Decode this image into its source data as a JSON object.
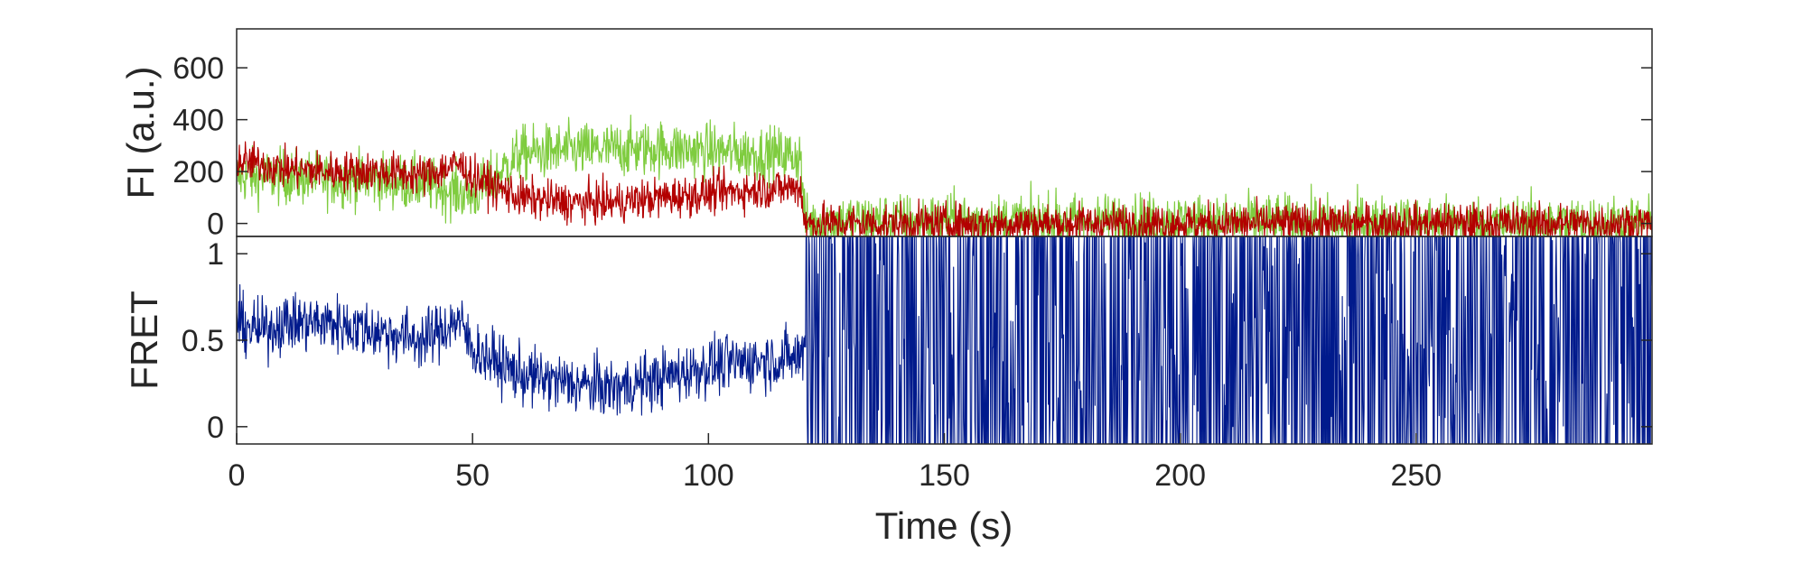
{
  "chart_data": [
    {
      "type": "line",
      "panel": "top",
      "ylabel": "FI (a.u.)",
      "xlim": [
        0,
        300
      ],
      "ylim": [
        -50,
        750
      ],
      "yticks": [
        0,
        200,
        400,
        600
      ],
      "ytick_labels": [
        "0",
        "200",
        "400",
        "600"
      ],
      "grid": false,
      "series": [
        {
          "color": "#7fcc3f",
          "noise": 75,
          "x": [
            0,
            10,
            20,
            30,
            40,
            50,
            55,
            60,
            70,
            80,
            90,
            100,
            110,
            119.5,
            120.5,
            130,
            150,
            200,
            250,
            300
          ],
          "y": [
            180,
            180,
            170,
            170,
            150,
            110,
            180,
            270,
            280,
            285,
            290,
            280,
            270,
            260,
            0,
            10,
            10,
            10,
            0,
            0
          ]
        },
        {
          "color": "#b30000",
          "noise": 55,
          "x": [
            0,
            5,
            10,
            20,
            30,
            40,
            47,
            50,
            60,
            70,
            80,
            90,
            100,
            110,
            119.5,
            120.5,
            130,
            150,
            200,
            250,
            300
          ],
          "y": [
            240,
            230,
            210,
            200,
            200,
            185,
            230,
            180,
            100,
            80,
            80,
            100,
            115,
            130,
            140,
            0,
            0,
            0,
            0,
            0,
            0
          ]
        }
      ]
    },
    {
      "type": "line",
      "panel": "bottom",
      "xlabel": "Time (s)",
      "ylabel": "FRET",
      "xlim": [
        0,
        300
      ],
      "ylim": [
        -0.1,
        1.1
      ],
      "xticks": [
        0,
        50,
        100,
        150,
        200,
        250
      ],
      "xtick_labels": [
        "0",
        "50",
        "100",
        "150",
        "200",
        "250"
      ],
      "yticks": [
        0,
        0.5,
        1
      ],
      "ytick_labels": [
        "0",
        "0.5",
        "1"
      ],
      "grid": false,
      "series": [
        {
          "color": "#001a8c",
          "noise": 0.12,
          "x": [
            0,
            5,
            10,
            20,
            30,
            40,
            47,
            50,
            60,
            70,
            80,
            90,
            100,
            110,
            119.5,
            120.5,
            300
          ],
          "y": [
            0.6,
            0.55,
            0.6,
            0.6,
            0.55,
            0.5,
            0.62,
            0.45,
            0.3,
            0.25,
            0.22,
            0.28,
            0.35,
            0.38,
            0.4,
            0.5,
            0.5
          ]
        }
      ]
    }
  ]
}
